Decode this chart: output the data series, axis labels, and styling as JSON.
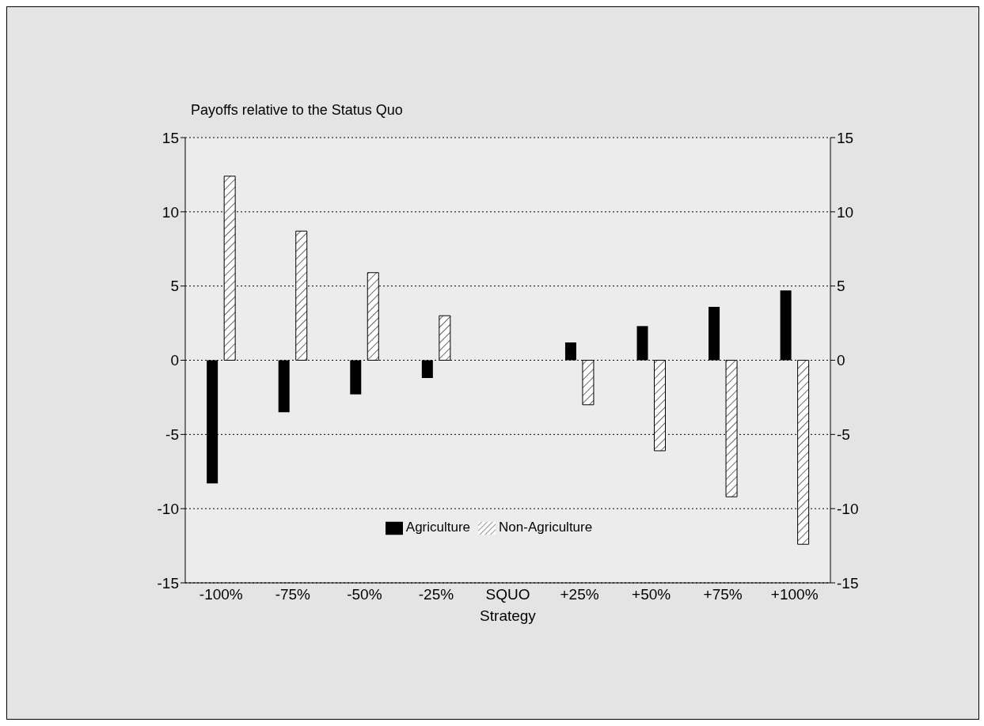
{
  "chart_data": {
    "type": "bar",
    "title": "Payoffs relative to the Status Quo",
    "xlabel": "Strategy",
    "categories": [
      "-100%",
      "-75%",
      "-50%",
      "-25%",
      "SQUO",
      "+25%",
      "+50%",
      "+75%",
      "+100%"
    ],
    "series": [
      {
        "name": "Agriculture",
        "color": "#000000",
        "values": [
          -8.3,
          -3.5,
          -2.3,
          -1.2,
          0,
          1.2,
          2.3,
          3.6,
          4.7
        ]
      },
      {
        "name": "Non-Agriculture",
        "color": "#000000",
        "values": [
          12.4,
          8.7,
          5.9,
          3.0,
          0,
          -3.0,
          -6.1,
          -9.2,
          -12.4
        ]
      }
    ],
    "ylim": [
      -15,
      15
    ],
    "yticks": [
      -15,
      -10,
      -5,
      0,
      5,
      10,
      15
    ],
    "y2lim": [
      -15,
      15
    ],
    "y2ticks": [
      -15,
      -10,
      -5,
      0,
      5,
      10,
      15
    ],
    "grid": "y",
    "legend": "bottom"
  }
}
